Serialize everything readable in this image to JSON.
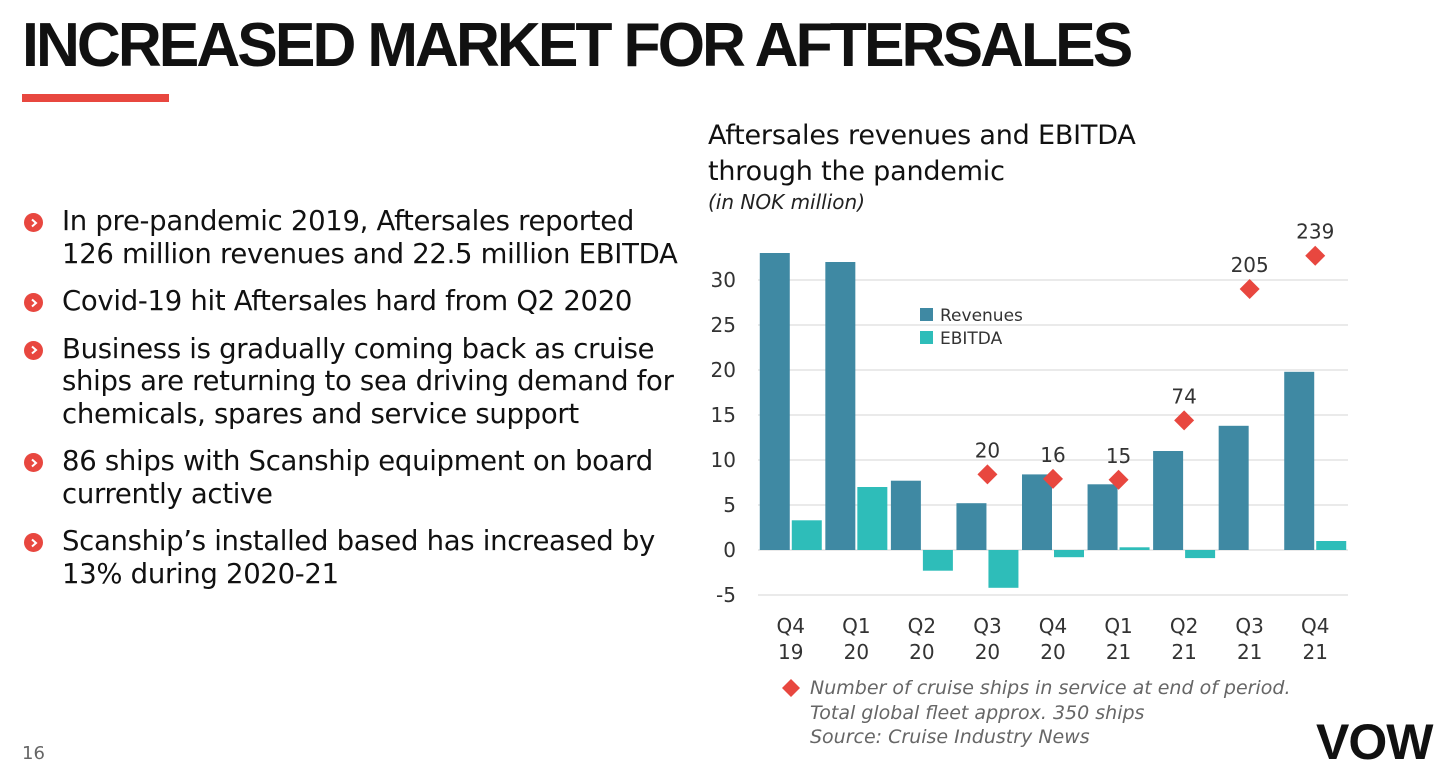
{
  "slide": {
    "title": "INCREASED MARKET FOR AFTERSALES",
    "page_number": "16",
    "logo_text": "VOW",
    "accent_color": "#E8473F",
    "bullet_icon": "chevron-circle-icon",
    "bullets": [
      "In pre-pandemic 2019, Aftersales reported 126 million revenues and 22.5 million EBITDA",
      "Covid-19 hit Aftersales hard from Q2 2020",
      "Business is gradually coming back as cruise ships are returning to sea driving demand for chemicals, spares and service support",
      "86 ships with Scanship equipment on board currently active",
      "Scanship’s installed based has increased by 13% during 2020-21"
    ]
  },
  "chart_data": {
    "type": "bar",
    "title_line1": "Aftersales revenues and EBITDA",
    "title_line2": "through the pandemic",
    "subtitle": "(in NOK million)",
    "categories": [
      [
        "Q4",
        "19"
      ],
      [
        "Q1",
        "20"
      ],
      [
        "Q2",
        "20"
      ],
      [
        "Q3",
        "20"
      ],
      [
        "Q4",
        "20"
      ],
      [
        "Q1",
        "21"
      ],
      [
        "Q2",
        "21"
      ],
      [
        "Q3",
        "21"
      ],
      [
        "Q4",
        "21"
      ]
    ],
    "ylim": [
      -5,
      35
    ],
    "yticks": [
      -5,
      0,
      5,
      10,
      15,
      20,
      25,
      30
    ],
    "grid": true,
    "legend_position": "top-center",
    "series": [
      {
        "name": "Revenues",
        "color": "#3F89A3",
        "values": [
          33,
          32,
          7.7,
          5.2,
          8.4,
          7.3,
          11.0,
          13.8,
          19.8
        ]
      },
      {
        "name": "EBITDA",
        "color": "#2EBDB9",
        "values": [
          3.3,
          7.0,
          -2.3,
          -4.2,
          -0.8,
          0.3,
          -0.9,
          0,
          1.0
        ]
      }
    ],
    "markers": {
      "color": "#E8473F",
      "description": "Number of cruise ships in service at end of period.",
      "values": [
        null,
        null,
        null,
        20,
        16,
        15,
        74,
        205,
        239
      ],
      "y_positions": [
        null,
        null,
        null,
        8.4,
        7.9,
        7.8,
        14.4,
        29.0,
        32.7
      ]
    },
    "footnote": [
      "Number of cruise ships in service at end of period.",
      "Total global fleet approx. 350 ships",
      "Source: Cruise Industry News"
    ]
  }
}
